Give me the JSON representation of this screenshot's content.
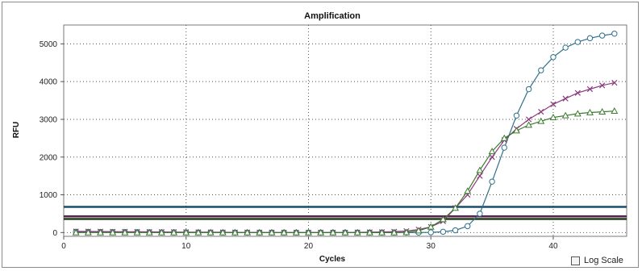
{
  "chart_data": {
    "type": "line",
    "title": "Amplification",
    "xlabel": "Cycles",
    "ylabel": "RFU",
    "xlim": [
      0,
      46
    ],
    "ylim": [
      -100,
      5500
    ],
    "xticks": [
      "0",
      "10",
      "20",
      "30",
      "40"
    ],
    "yticks": [
      "0",
      "1000",
      "2000",
      "3000",
      "4000",
      "5000"
    ],
    "grid": true,
    "x": [
      1,
      2,
      3,
      4,
      5,
      6,
      7,
      8,
      9,
      10,
      11,
      12,
      13,
      14,
      15,
      16,
      17,
      18,
      19,
      20,
      21,
      22,
      23,
      24,
      25,
      26,
      27,
      28,
      29,
      30,
      31,
      32,
      33,
      34,
      35,
      36,
      37,
      38,
      39,
      40,
      41,
      42,
      43,
      44,
      45
    ],
    "series": [
      {
        "marker": "circle",
        "color": "#2e6f8c",
        "values": [
          20,
          18,
          16,
          14,
          12,
          10,
          8,
          6,
          5,
          4,
          3,
          2,
          1,
          0,
          0,
          0,
          0,
          0,
          0,
          0,
          0,
          0,
          0,
          0,
          0,
          0,
          0,
          0,
          0,
          5,
          20,
          60,
          170,
          500,
          1350,
          2250,
          3100,
          3800,
          4300,
          4650,
          4900,
          5050,
          5150,
          5220,
          5270
        ]
      },
      {
        "marker": "x",
        "color": "#8b3a7e",
        "values": [
          30,
          28,
          26,
          24,
          22,
          20,
          18,
          16,
          14,
          12,
          10,
          8,
          6,
          4,
          3,
          2,
          1,
          0,
          0,
          0,
          0,
          0,
          0,
          5,
          10,
          15,
          25,
          40,
          80,
          150,
          300,
          650,
          1000,
          1500,
          2000,
          2450,
          2750,
          3000,
          3200,
          3400,
          3550,
          3700,
          3800,
          3900,
          3970
        ]
      },
      {
        "marker": "triangle",
        "color": "#3a7a2c",
        "values": [
          0,
          0,
          0,
          0,
          0,
          0,
          0,
          0,
          0,
          0,
          0,
          0,
          0,
          0,
          0,
          0,
          0,
          0,
          0,
          0,
          0,
          0,
          0,
          0,
          0,
          0,
          0,
          5,
          50,
          150,
          350,
          650,
          1100,
          1650,
          2150,
          2500,
          2700,
          2850,
          2950,
          3050,
          3100,
          3150,
          3180,
          3200,
          3220
        ]
      }
    ],
    "thresholds": [
      {
        "value": 680,
        "color": "#1a4d6a"
      },
      {
        "value": 430,
        "color": "#5a1f4e"
      },
      {
        "value": 360,
        "color": "#1f3f18"
      }
    ]
  },
  "controls": {
    "log_scale_label": "Log Scale",
    "log_scale_checked": false
  }
}
